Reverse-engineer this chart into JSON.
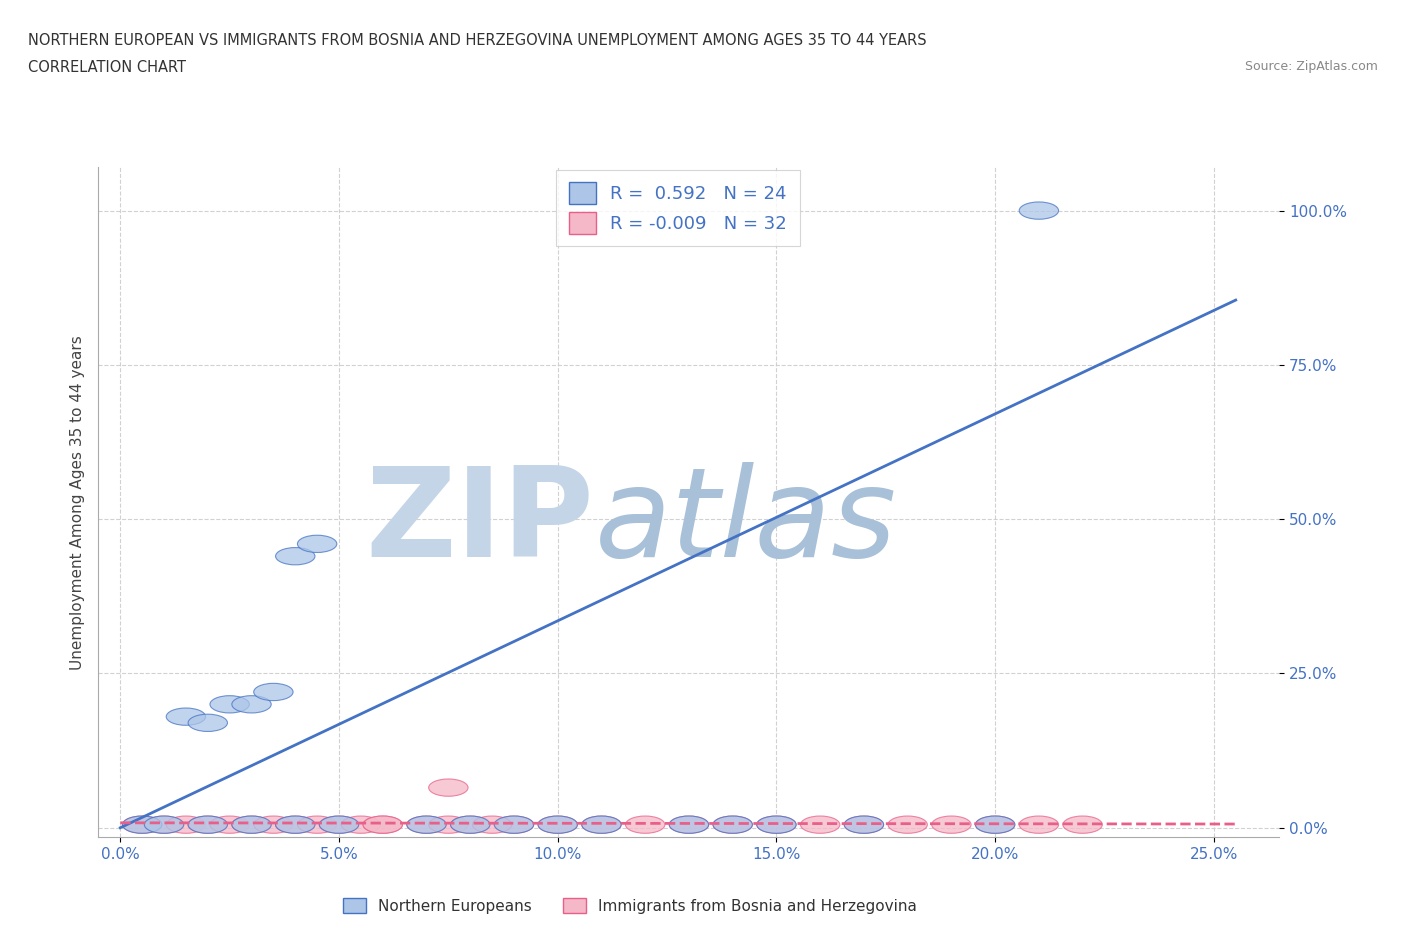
{
  "title_line1": "NORTHERN EUROPEAN VS IMMIGRANTS FROM BOSNIA AND HERZEGOVINA UNEMPLOYMENT AMONG AGES 35 TO 44 YEARS",
  "title_line2": "CORRELATION CHART",
  "source": "Source: ZipAtlas.com",
  "ylabel": "Unemployment Among Ages 35 to 44 years",
  "xlim": [
    -0.005,
    0.265
  ],
  "ylim": [
    -0.015,
    1.07
  ],
  "xticks": [
    0.0,
    0.05,
    0.1,
    0.15,
    0.2,
    0.25
  ],
  "xtick_labels": [
    "0.0%",
    "5.0%",
    "10.0%",
    "15.0%",
    "20.0%",
    "25.0%"
  ],
  "yticks": [
    0.0,
    0.25,
    0.5,
    0.75,
    1.0
  ],
  "ytick_labels": [
    "0.0%",
    "25.0%",
    "50.0%",
    "75.0%",
    "100.0%"
  ],
  "blue_R": 0.592,
  "blue_N": 24,
  "pink_R": -0.009,
  "pink_N": 32,
  "blue_color": "#adc6e8",
  "pink_color": "#f4b8c8",
  "blue_line_color": "#4472C4",
  "pink_line_color": "#e8608a",
  "watermark_part1": "ZIP",
  "watermark_part2": "atlas",
  "watermark_color1": "#c5d5e8",
  "watermark_color2": "#a8c0d8",
  "background_color": "#ffffff",
  "legend_label_blue": "Northern Europeans",
  "legend_label_pink": "Immigrants from Bosnia and Herzegovina",
  "blue_scatter_x": [
    0.005,
    0.01,
    0.015,
    0.02,
    0.02,
    0.025,
    0.03,
    0.03,
    0.035,
    0.04,
    0.04,
    0.045,
    0.05,
    0.07,
    0.08,
    0.09,
    0.1,
    0.11,
    0.13,
    0.14,
    0.15,
    0.17,
    0.2,
    0.21
  ],
  "blue_scatter_y": [
    0.005,
    0.005,
    0.18,
    0.005,
    0.17,
    0.2,
    0.005,
    0.2,
    0.22,
    0.005,
    0.44,
    0.46,
    0.005,
    0.005,
    0.005,
    0.005,
    0.005,
    0.005,
    0.005,
    0.005,
    0.005,
    0.005,
    0.005,
    1.0
  ],
  "blue_trend_x0": 0.0,
  "blue_trend_y0": 0.0,
  "blue_trend_x1": 0.255,
  "blue_trend_y1": 0.855,
  "pink_scatter_x": [
    0.005,
    0.01,
    0.015,
    0.02,
    0.025,
    0.03,
    0.035,
    0.04,
    0.045,
    0.05,
    0.055,
    0.06,
    0.07,
    0.075,
    0.08,
    0.09,
    0.1,
    0.11,
    0.12,
    0.13,
    0.14,
    0.15,
    0.16,
    0.17,
    0.18,
    0.19,
    0.2,
    0.21,
    0.22,
    0.075,
    0.085,
    0.06
  ],
  "pink_scatter_y": [
    0.005,
    0.005,
    0.005,
    0.005,
    0.005,
    0.005,
    0.005,
    0.005,
    0.005,
    0.005,
    0.005,
    0.005,
    0.005,
    0.005,
    0.005,
    0.005,
    0.005,
    0.005,
    0.005,
    0.005,
    0.005,
    0.005,
    0.005,
    0.005,
    0.005,
    0.005,
    0.005,
    0.005,
    0.005,
    0.065,
    0.005,
    0.005
  ],
  "pink_trend_x0": 0.0,
  "pink_trend_y0": 0.008,
  "pink_trend_x1": 0.255,
  "pink_trend_y1": 0.006
}
